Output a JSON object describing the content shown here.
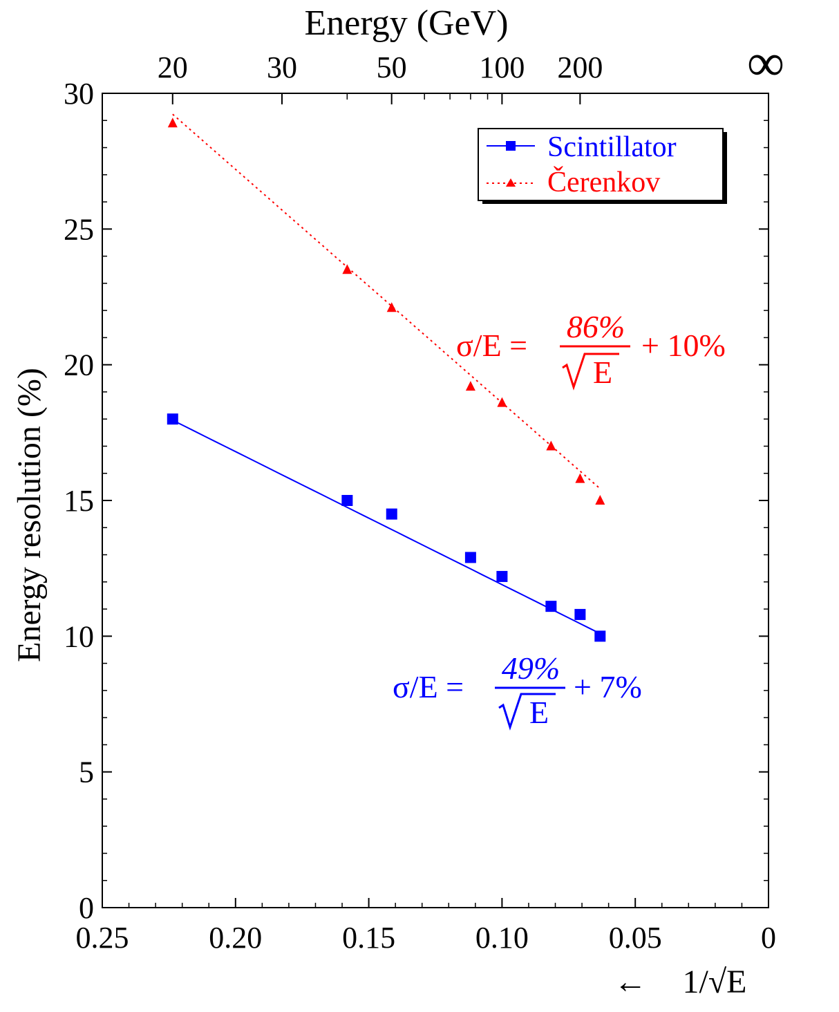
{
  "chart_data": {
    "type": "scatter",
    "title": "",
    "xlabel_prefix": "←",
    "xlabel": "1/√E",
    "ylabel": "Energy resolution (%)",
    "x2label": "Energy (GeV)",
    "xlim": [
      0.25,
      0
    ],
    "ylim": [
      0,
      30
    ],
    "x_ticks": [
      0.25,
      0.2,
      0.15,
      0.1,
      0.05,
      0
    ],
    "x_tick_labels": [
      "0.25",
      "0.20",
      "0.15",
      "0.10",
      "0.05",
      "0"
    ],
    "y_ticks": [
      0,
      5,
      10,
      15,
      20,
      25,
      30
    ],
    "y_tick_labels": [
      "0",
      "5",
      "10",
      "15",
      "20",
      "25",
      "30"
    ],
    "top_ticks": [
      {
        "energy": 20,
        "label": "20"
      },
      {
        "energy": 30,
        "label": "30"
      },
      {
        "energy": 50,
        "label": "50"
      },
      {
        "energy": 100,
        "label": "100"
      },
      {
        "energy": 200,
        "label": "200"
      },
      {
        "energy": "inf",
        "label": "∞"
      }
    ],
    "top_minor_energies": [
      40,
      60,
      70,
      80,
      90
    ],
    "grid": false,
    "legend_position": "top-right",
    "series": [
      {
        "name": "Scintillator",
        "color": "#0000ff",
        "marker": "square",
        "line_style": "solid",
        "x": [
          0.2236,
          0.1581,
          0.1414,
          0.1118,
          0.1,
          0.0816,
          0.0707,
          0.0632
        ],
        "y": [
          18.0,
          15.0,
          14.5,
          12.9,
          12.2,
          11.1,
          10.8,
          10.0
        ],
        "fit": {
          "stochastic": 49,
          "constant": 7,
          "x_range": [
            0.2236,
            0.0632
          ]
        },
        "annotation": {
          "lhs": "σ/E =",
          "numerator": "49%",
          "denominator": "E",
          "suffix": "+ 7%"
        }
      },
      {
        "name": "Čerenkov",
        "color": "#ff0000",
        "marker": "triangle",
        "line_style": "dotted",
        "x": [
          0.2236,
          0.1581,
          0.1414,
          0.1118,
          0.1,
          0.0816,
          0.0707,
          0.0632
        ],
        "y": [
          28.9,
          23.5,
          22.1,
          19.2,
          18.6,
          17.0,
          15.8,
          15.0
        ],
        "fit": {
          "stochastic": 86,
          "constant": 10,
          "x_range": [
            0.2236,
            0.0632
          ]
        },
        "annotation": {
          "lhs": "σ/E =",
          "numerator": "86%",
          "denominator": "E",
          "suffix": "+ 10%"
        }
      }
    ]
  }
}
